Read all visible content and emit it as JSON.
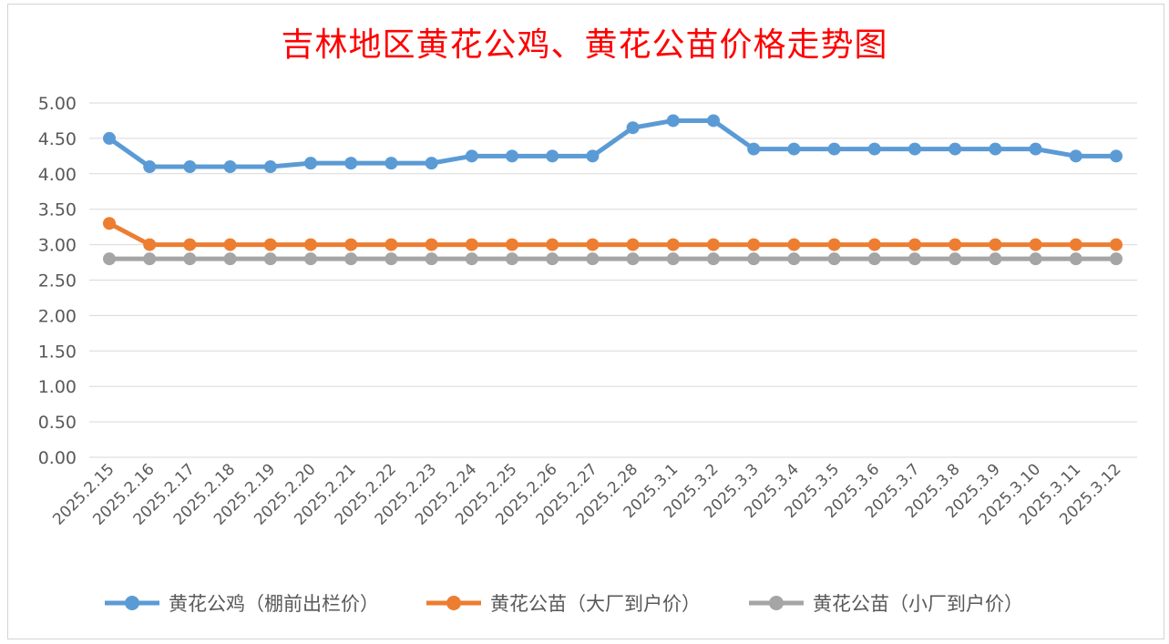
{
  "chart_data": {
    "type": "line",
    "title": "吉林地区黄花公鸡、黄花公苗价格走势图",
    "xlabel": "",
    "ylabel": "",
    "ylim": [
      0,
      5
    ],
    "yticks": [
      "0.00",
      "0.50",
      "1.00",
      "1.50",
      "2.00",
      "2.50",
      "3.00",
      "3.50",
      "4.00",
      "4.50",
      "5.00"
    ],
    "grid": true,
    "legend_position": "bottom",
    "categories": [
      "2025.2.15",
      "2025.2.16",
      "2025.2.17",
      "2025.2.18",
      "2025.2.19",
      "2025.2.20",
      "2025.2.21",
      "2025.2.22",
      "2025.2.23",
      "2025.2.24",
      "2025.2.25",
      "2025.2.26",
      "2025.2.27",
      "2025.2.28",
      "2025.3.1",
      "2025.3.2",
      "2025.3.3",
      "2025.3.4",
      "2025.3.5",
      "2025.3.6",
      "2025.3.7",
      "2025.3.8",
      "2025.3.9",
      "2025.3.10",
      "2025.3.11",
      "2025.3.12"
    ],
    "series": [
      {
        "name": "黄花公鸡（棚前出栏价）",
        "color": "#5b9bd5",
        "values": [
          4.5,
          4.1,
          4.1,
          4.1,
          4.1,
          4.15,
          4.15,
          4.15,
          4.15,
          4.25,
          4.25,
          4.25,
          4.25,
          4.65,
          4.75,
          4.75,
          4.35,
          4.35,
          4.35,
          4.35,
          4.35,
          4.35,
          4.35,
          4.35,
          4.25,
          4.25
        ]
      },
      {
        "name": "黄花公苗（大厂到户价）",
        "color": "#ed7d31",
        "values": [
          3.3,
          3.0,
          3.0,
          3.0,
          3.0,
          3.0,
          3.0,
          3.0,
          3.0,
          3.0,
          3.0,
          3.0,
          3.0,
          3.0,
          3.0,
          3.0,
          3.0,
          3.0,
          3.0,
          3.0,
          3.0,
          3.0,
          3.0,
          3.0,
          3.0,
          3.0
        ]
      },
      {
        "name": "黄花公苗（小厂到户价）",
        "color": "#a5a5a5",
        "values": [
          2.8,
          2.8,
          2.8,
          2.8,
          2.8,
          2.8,
          2.8,
          2.8,
          2.8,
          2.8,
          2.8,
          2.8,
          2.8,
          2.8,
          2.8,
          2.8,
          2.8,
          2.8,
          2.8,
          2.8,
          2.8,
          2.8,
          2.8,
          2.8,
          2.8,
          2.8
        ]
      }
    ]
  }
}
